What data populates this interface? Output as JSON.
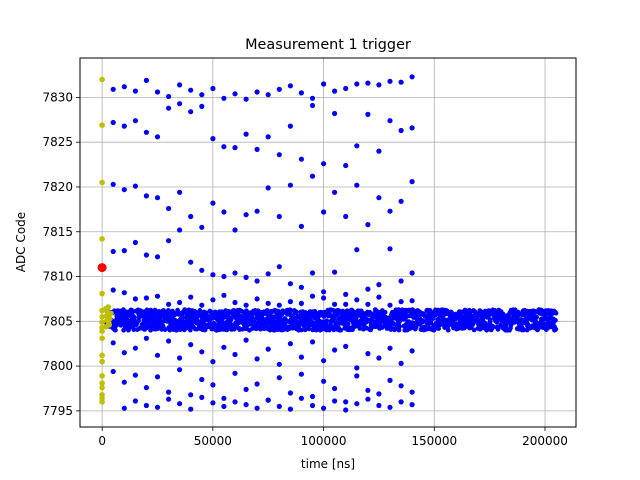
{
  "chart_data": {
    "type": "scatter",
    "title": "Measurement 1 trigger",
    "xlabel": "time [ns]",
    "ylabel": "ADC Code",
    "xlim": [
      -10000,
      214000
    ],
    "ylim": [
      7793.2,
      7834.4
    ],
    "xticks": [
      0,
      50000,
      100000,
      150000,
      200000
    ],
    "xtick_labels": [
      "0",
      "50000",
      "100000",
      "150000",
      "200000"
    ],
    "yticks": [
      7795,
      7800,
      7805,
      7810,
      7815,
      7820,
      7825,
      7830
    ],
    "ytick_labels": [
      "7795",
      "7800",
      "7805",
      "7810",
      "7815",
      "7820",
      "7825",
      "7830"
    ],
    "grid": true,
    "legend": "none",
    "colors": {
      "main": "#0000ff",
      "trigger_window": "#bfbf00",
      "trigger": "#ff0000",
      "grid": "#b0b0b0"
    },
    "series": [
      {
        "role": "main",
        "color": "#0000ff",
        "dense_band": {
          "x_range": [
            2000,
            205000
          ],
          "y_range": [
            7804,
            7806.3
          ]
        },
        "points": [
          [
            5000,
            7830.9
          ],
          [
            10000,
            7831.2
          ],
          [
            15000,
            7830.7
          ],
          [
            20000,
            7831.9
          ],
          [
            25000,
            7830.6
          ],
          [
            30000,
            7830.1
          ],
          [
            35000,
            7831.4
          ],
          [
            40000,
            7830.8
          ],
          [
            45000,
            7830.3
          ],
          [
            50000,
            7831.0
          ],
          [
            55000,
            7829.9
          ],
          [
            60000,
            7830.4
          ],
          [
            65000,
            7829.8
          ],
          [
            70000,
            7830.6
          ],
          [
            75000,
            7830.3
          ],
          [
            80000,
            7830.9
          ],
          [
            85000,
            7831.3
          ],
          [
            90000,
            7830.5
          ],
          [
            95000,
            7829.9
          ],
          [
            100000,
            7831.5
          ],
          [
            105000,
            7830.7
          ],
          [
            110000,
            7831.0
          ],
          [
            115000,
            7831.5
          ],
          [
            120000,
            7831.6
          ],
          [
            125000,
            7831.4
          ],
          [
            130000,
            7831.8
          ],
          [
            135000,
            7831.7
          ],
          [
            140000,
            7832.3
          ],
          [
            5000,
            7827.2
          ],
          [
            10000,
            7826.8
          ],
          [
            15000,
            7827.4
          ],
          [
            20000,
            7826.1
          ],
          [
            25000,
            7825.6
          ],
          [
            30000,
            7828.8
          ],
          [
            35000,
            7829.3
          ],
          [
            40000,
            7828.4
          ],
          [
            45000,
            7829.0
          ],
          [
            50000,
            7825.4
          ],
          [
            55000,
            7824.5
          ],
          [
            60000,
            7824.4
          ],
          [
            65000,
            7825.9
          ],
          [
            70000,
            7824.2
          ],
          [
            75000,
            7825.6
          ],
          [
            80000,
            7823.6
          ],
          [
            85000,
            7826.8
          ],
          [
            90000,
            7823.1
          ],
          [
            95000,
            7829.1
          ],
          [
            100000,
            7822.6
          ],
          [
            105000,
            7828.2
          ],
          [
            110000,
            7822.4
          ],
          [
            115000,
            7824.6
          ],
          [
            120000,
            7828.1
          ],
          [
            125000,
            7824.0
          ],
          [
            130000,
            7827.4
          ],
          [
            135000,
            7826.3
          ],
          [
            140000,
            7826.6
          ],
          [
            5000,
            7820.3
          ],
          [
            10000,
            7819.7
          ],
          [
            15000,
            7820.1
          ],
          [
            20000,
            7819.0
          ],
          [
            25000,
            7818.8
          ],
          [
            30000,
            7817.6
          ],
          [
            35000,
            7819.4
          ],
          [
            40000,
            7816.7
          ],
          [
            45000,
            7815.5
          ],
          [
            50000,
            7818.2
          ],
          [
            55000,
            7817.2
          ],
          [
            60000,
            7815.2
          ],
          [
            65000,
            7816.9
          ],
          [
            70000,
            7817.3
          ],
          [
            75000,
            7819.9
          ],
          [
            80000,
            7816.7
          ],
          [
            85000,
            7820.2
          ],
          [
            90000,
            7815.6
          ],
          [
            95000,
            7821.2
          ],
          [
            100000,
            7817.2
          ],
          [
            105000,
            7819.4
          ],
          [
            110000,
            7816.7
          ],
          [
            115000,
            7820.2
          ],
          [
            120000,
            7815.8
          ],
          [
            125000,
            7818.8
          ],
          [
            130000,
            7817.3
          ],
          [
            135000,
            7818.4
          ],
          [
            140000,
            7820.6
          ],
          [
            5000,
            7812.8
          ],
          [
            10000,
            7812.9
          ],
          [
            15000,
            7813.8
          ],
          [
            20000,
            7812.4
          ],
          [
            25000,
            7812.2
          ],
          [
            30000,
            7814.0
          ],
          [
            35000,
            7815.2
          ],
          [
            40000,
            7811.6
          ],
          [
            45000,
            7810.7
          ],
          [
            50000,
            7810.2
          ],
          [
            55000,
            7810.0
          ],
          [
            60000,
            7810.4
          ],
          [
            65000,
            7809.9
          ],
          [
            70000,
            7809.5
          ],
          [
            75000,
            7810.3
          ],
          [
            80000,
            7811.1
          ],
          [
            85000,
            7809.2
          ],
          [
            90000,
            7808.8
          ],
          [
            95000,
            7810.4
          ],
          [
            100000,
            7808.3
          ],
          [
            105000,
            7810.5
          ],
          [
            110000,
            7808.0
          ],
          [
            115000,
            7813.0
          ],
          [
            120000,
            7808.6
          ],
          [
            125000,
            7809.1
          ],
          [
            130000,
            7813.1
          ],
          [
            135000,
            7809.5
          ],
          [
            140000,
            7810.4
          ],
          [
            5000,
            7808.5
          ],
          [
            10000,
            7808.2
          ],
          [
            15000,
            7807.5
          ],
          [
            20000,
            7807.6
          ],
          [
            25000,
            7807.8
          ],
          [
            30000,
            7806.9
          ],
          [
            35000,
            7807.1
          ],
          [
            40000,
            7807.7
          ],
          [
            45000,
            7806.8
          ],
          [
            50000,
            7807.4
          ],
          [
            55000,
            7807.9
          ],
          [
            60000,
            7807.1
          ],
          [
            65000,
            7806.8
          ],
          [
            70000,
            7807.5
          ],
          [
            75000,
            7807.0
          ],
          [
            80000,
            7806.8
          ],
          [
            85000,
            7807.2
          ],
          [
            90000,
            7807.0
          ],
          [
            95000,
            7807.8
          ],
          [
            100000,
            7807.6
          ],
          [
            105000,
            7806.9
          ],
          [
            110000,
            7806.9
          ],
          [
            115000,
            7807.4
          ],
          [
            120000,
            7806.9
          ],
          [
            125000,
            7807.7
          ],
          [
            130000,
            7806.8
          ],
          [
            135000,
            7807.2
          ],
          [
            140000,
            7807.3
          ],
          [
            5000,
            7802.6
          ],
          [
            10000,
            7801.5
          ],
          [
            15000,
            7802.0
          ],
          [
            20000,
            7803.1
          ],
          [
            25000,
            7801.2
          ],
          [
            30000,
            7802.8
          ],
          [
            35000,
            7800.9
          ],
          [
            40000,
            7802.4
          ],
          [
            45000,
            7801.6
          ],
          [
            50000,
            7800.5
          ],
          [
            55000,
            7802.1
          ],
          [
            60000,
            7801.3
          ],
          [
            65000,
            7802.9
          ],
          [
            70000,
            7800.8
          ],
          [
            75000,
            7801.9
          ],
          [
            80000,
            7800.2
          ],
          [
            85000,
            7802.5
          ],
          [
            90000,
            7801.0
          ],
          [
            95000,
            7802.7
          ],
          [
            100000,
            7800.6
          ],
          [
            105000,
            7801.8
          ],
          [
            110000,
            7802.2
          ],
          [
            115000,
            7799.8
          ],
          [
            120000,
            7801.4
          ],
          [
            125000,
            7800.9
          ],
          [
            130000,
            7802.0
          ],
          [
            135000,
            7800.3
          ],
          [
            140000,
            7801.7
          ],
          [
            5000,
            7799.4
          ],
          [
            10000,
            7798.2
          ],
          [
            15000,
            7799.0
          ],
          [
            20000,
            7797.6
          ],
          [
            25000,
            7798.8
          ],
          [
            30000,
            7797.1
          ],
          [
            35000,
            7799.6
          ],
          [
            40000,
            7796.8
          ],
          [
            45000,
            7798.5
          ],
          [
            50000,
            7797.9
          ],
          [
            55000,
            7796.4
          ],
          [
            60000,
            7799.2
          ],
          [
            65000,
            7797.4
          ],
          [
            70000,
            7798.0
          ],
          [
            75000,
            7796.2
          ],
          [
            80000,
            7798.7
          ],
          [
            85000,
            7797.0
          ],
          [
            90000,
            7799.1
          ],
          [
            95000,
            7796.6
          ],
          [
            100000,
            7798.3
          ],
          [
            105000,
            7797.5
          ],
          [
            110000,
            7796.0
          ],
          [
            115000,
            7798.9
          ],
          [
            120000,
            7797.3
          ],
          [
            125000,
            7796.9
          ],
          [
            130000,
            7798.4
          ],
          [
            135000,
            7797.8
          ],
          [
            140000,
            7797.1
          ],
          [
            10000,
            7795.3
          ],
          [
            15000,
            7796.1
          ],
          [
            20000,
            7795.6
          ],
          [
            25000,
            7795.4
          ],
          [
            30000,
            7796.3
          ],
          [
            35000,
            7795.8
          ],
          [
            40000,
            7795.2
          ],
          [
            45000,
            7796.5
          ],
          [
            50000,
            7795.9
          ],
          [
            55000,
            7795.5
          ],
          [
            60000,
            7796.0
          ],
          [
            65000,
            7795.7
          ],
          [
            70000,
            7795.3
          ],
          [
            75000,
            7796.2
          ],
          [
            80000,
            7795.5
          ],
          [
            85000,
            7795.2
          ],
          [
            90000,
            7796.4
          ],
          [
            95000,
            7795.6
          ],
          [
            100000,
            7795.3
          ],
          [
            105000,
            7796.1
          ],
          [
            110000,
            7795.1
          ],
          [
            115000,
            7795.8
          ],
          [
            120000,
            7796.3
          ],
          [
            125000,
            7795.6
          ],
          [
            130000,
            7795.4
          ],
          [
            135000,
            7796.0
          ],
          [
            140000,
            7795.7
          ]
        ]
      },
      {
        "role": "trigger_window",
        "color": "#bfbf00",
        "points": [
          [
            0,
            7832.0
          ],
          [
            0,
            7826.9
          ],
          [
            0,
            7820.5
          ],
          [
            0,
            7814.2
          ],
          [
            0,
            7808.1
          ],
          [
            0,
            7806.2
          ],
          [
            0,
            7805.5
          ],
          [
            0,
            7804.9
          ],
          [
            0,
            7804.3
          ],
          [
            0,
            7803.9
          ],
          [
            0,
            7803.1
          ],
          [
            0,
            7801.2
          ],
          [
            0,
            7800.5
          ],
          [
            0,
            7798.9
          ],
          [
            0,
            7798.1
          ],
          [
            0,
            7797.6
          ],
          [
            0,
            7796.8
          ],
          [
            0,
            7796.4
          ],
          [
            0,
            7796.0
          ],
          [
            1500,
            7806.4
          ],
          [
            2000,
            7805.6
          ],
          [
            2500,
            7806.0
          ],
          [
            3000,
            7804.8
          ],
          [
            3500,
            7805.3
          ],
          [
            4000,
            7805.9
          ],
          [
            1800,
            7804.4
          ],
          [
            2800,
            7806.6
          ],
          [
            3200,
            7804.6
          ],
          [
            2200,
            7805.1
          ]
        ]
      },
      {
        "role": "trigger",
        "color": "#ff0000",
        "points": [
          [
            0,
            7811.0
          ]
        ]
      }
    ]
  }
}
